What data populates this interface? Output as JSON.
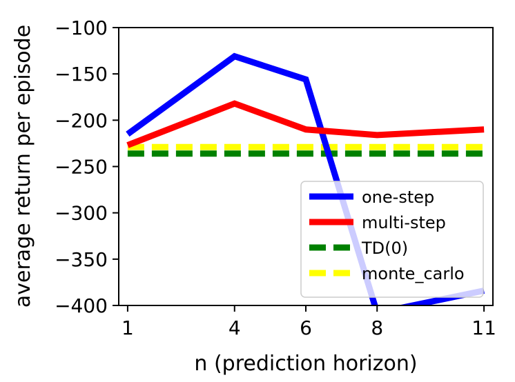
{
  "chart_data": {
    "type": "line",
    "xlabel": "n (prediction horizon)",
    "ylabel": "average return per episode",
    "x": [
      1,
      4,
      6,
      8,
      11
    ],
    "xticks": [
      "1",
      "4",
      "6",
      "8",
      "11"
    ],
    "yticks": [
      "−100",
      "−150",
      "−200",
      "−250",
      "−300",
      "−350",
      "−400"
    ],
    "ylim": [
      -400,
      -100
    ],
    "grid": false,
    "legend_position": "lower-right",
    "series": [
      {
        "name": "one-step",
        "values": [
          -215,
          -131,
          -156,
          -408,
          -384
        ],
        "color": "#0000ff",
        "style": "solid"
      },
      {
        "name": "multi-step",
        "values": [
          -227,
          -182,
          -210,
          -216,
          -210
        ],
        "color": "#ff0000",
        "style": "solid"
      },
      {
        "name": "TD(0)",
        "values": [
          -236,
          -236,
          -236,
          -236,
          -236
        ],
        "color": "#008000",
        "style": "dashed"
      },
      {
        "name": "monte_carlo",
        "values": [
          -229,
          -229,
          -229,
          -229,
          -229
        ],
        "color": "#ffff00",
        "style": "dashed"
      }
    ]
  }
}
